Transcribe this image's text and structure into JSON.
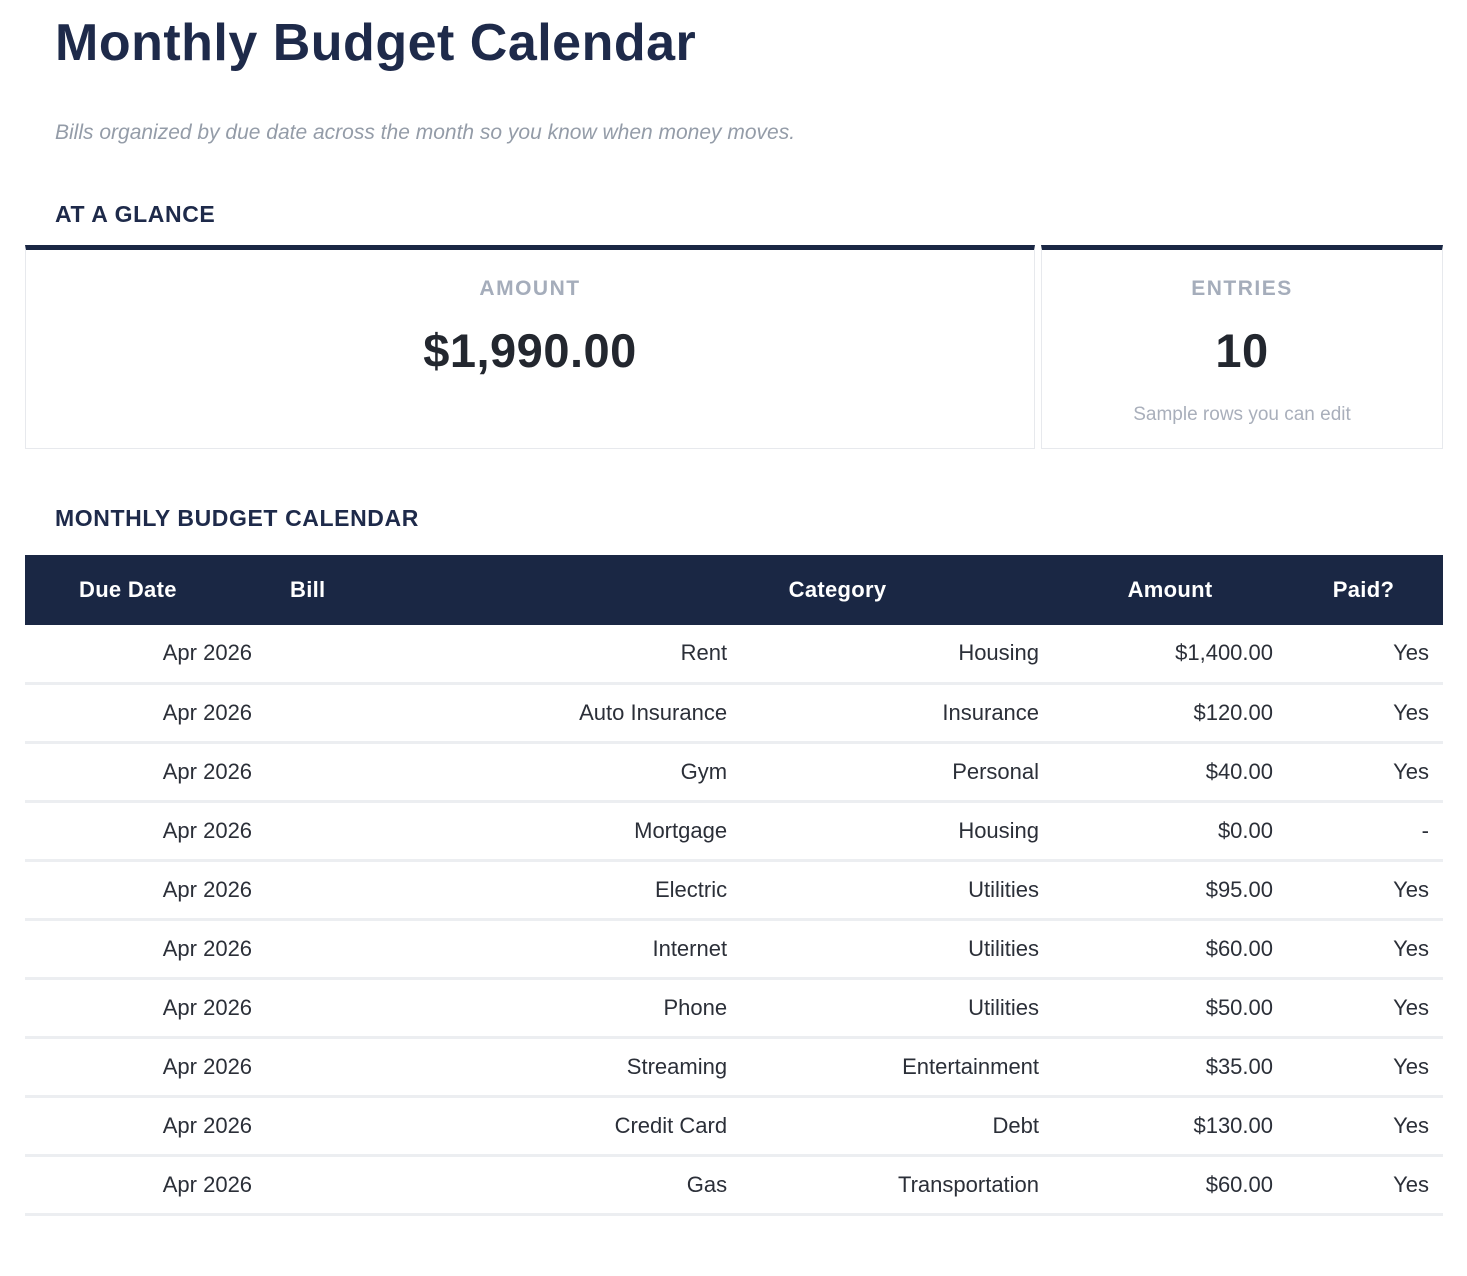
{
  "page": {
    "title": "Monthly Budget Calendar",
    "subtitle": "Bills organized by due date across the month so you know when money moves."
  },
  "glance": {
    "heading": "AT A GLANCE",
    "amount_card": {
      "label": "AMOUNT",
      "value": "$1,990.00"
    },
    "entries_card": {
      "label": "ENTRIES",
      "value": "10",
      "note": "Sample rows you can edit"
    }
  },
  "calendar": {
    "heading": "MONTHLY BUDGET CALENDAR",
    "columns": [
      "Due Date",
      "Bill",
      "Category",
      "Amount",
      "Paid?"
    ],
    "rows": [
      [
        "Apr 2026",
        "Rent",
        "Housing",
        "$1,400.00",
        "Yes"
      ],
      [
        "Apr 2026",
        "Auto Insurance",
        "Insurance",
        "$120.00",
        "Yes"
      ],
      [
        "Apr 2026",
        "Gym",
        "Personal",
        "$40.00",
        "Yes"
      ],
      [
        "Apr 2026",
        "Mortgage",
        "Housing",
        "$0.00",
        "-"
      ],
      [
        "Apr 2026",
        "Electric",
        "Utilities",
        "$95.00",
        "Yes"
      ],
      [
        "Apr 2026",
        "Internet",
        "Utilities",
        "$60.00",
        "Yes"
      ],
      [
        "Apr 2026",
        "Phone",
        "Utilities",
        "$50.00",
        "Yes"
      ],
      [
        "Apr 2026",
        "Streaming",
        "Entertainment",
        "$35.00",
        "Yes"
      ],
      [
        "Apr 2026",
        "Credit Card",
        "Debt",
        "$130.00",
        "Yes"
      ],
      [
        "Apr 2026",
        "Gas",
        "Transportation",
        "$60.00",
        "Yes"
      ]
    ]
  },
  "colors": {
    "header_navy": "#1a2744",
    "heading_text_navy": "#1e2a4a",
    "muted_gray": "#a5adbb",
    "row_divider": "#eceef1",
    "body_text": "#2b2f38"
  }
}
